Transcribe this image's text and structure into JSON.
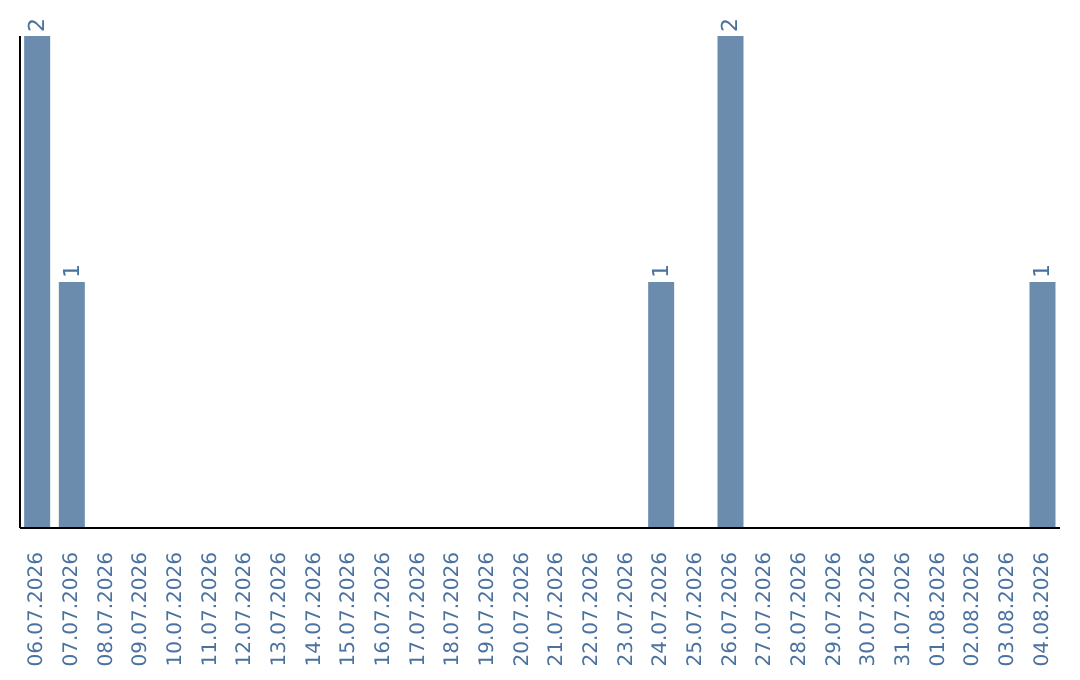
{
  "chart_data": {
    "type": "bar",
    "categories": [
      "06.07.2026",
      "07.07.2026",
      "08.07.2026",
      "09.07.2026",
      "10.07.2026",
      "11.07.2026",
      "12.07.2026",
      "13.07.2026",
      "14.07.2026",
      "15.07.2026",
      "16.07.2026",
      "17.07.2026",
      "18.07.2026",
      "19.07.2026",
      "20.07.2026",
      "21.07.2026",
      "22.07.2026",
      "23.07.2026",
      "24.07.2026",
      "25.07.2026",
      "26.07.2026",
      "27.07.2026",
      "28.07.2026",
      "29.07.2026",
      "30.07.2026",
      "31.07.2026",
      "01.08.2026",
      "02.08.2026",
      "03.08.2026",
      "04.08.2026"
    ],
    "values": [
      2,
      1,
      0,
      0,
      0,
      0,
      0,
      0,
      0,
      0,
      0,
      0,
      0,
      0,
      0,
      0,
      0,
      0,
      1,
      0,
      2,
      0,
      0,
      0,
      0,
      0,
      0,
      0,
      0,
      1
    ],
    "value_labels": [
      "2",
      "1",
      null,
      null,
      null,
      null,
      null,
      null,
      null,
      null,
      null,
      null,
      null,
      null,
      null,
      null,
      null,
      null,
      "1",
      null,
      "2",
      null,
      null,
      null,
      null,
      null,
      null,
      null,
      null,
      "1"
    ],
    "color": "#6b8cad",
    "grid": false,
    "legend": false
  }
}
